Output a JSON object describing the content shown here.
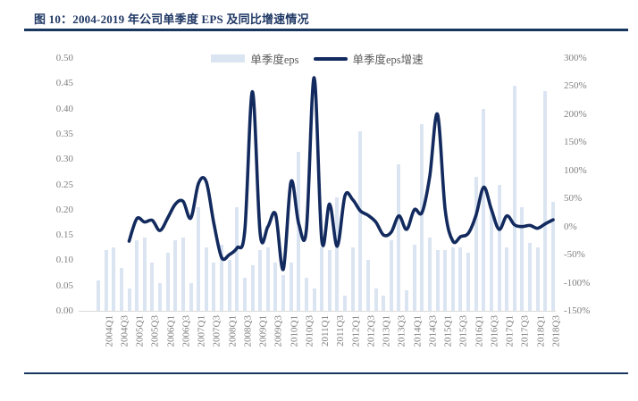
{
  "figure": {
    "title": "图 10：2004-2019 年公司单季度 EPS 及同比增速情况"
  },
  "colors": {
    "title_navy": "#1f3864",
    "frame_rule_navy": "#17375e",
    "bar_fill_light_blue": "#dbe5f2",
    "growth_line_navy": "#122a5e",
    "axis_text_gray": "#7f7f7f"
  },
  "chart_data": {
    "type": "bar",
    "subtype": "bar-plus-line-dual-axis",
    "grid": false,
    "legend_position": "top-center",
    "categories": [
      "2004Q1",
      "2004Q2",
      "2004Q3",
      "2004Q4",
      "2005Q1",
      "2005Q2",
      "2005Q3",
      "2005Q4",
      "2006Q1",
      "2006Q2",
      "2006Q3",
      "2006Q4",
      "2007Q1",
      "2007Q2",
      "2007Q3",
      "2007Q4",
      "2008Q1",
      "2008Q2",
      "2008Q3",
      "2008Q4",
      "2009Q1",
      "2009Q2",
      "2009Q3",
      "2009Q4",
      "2010Q1",
      "2010Q2",
      "2010Q3",
      "2010Q4",
      "2011Q1",
      "2011Q2",
      "2011Q3",
      "2011Q4",
      "2012Q1",
      "2012Q2",
      "2012Q3",
      "2012Q4",
      "2013Q1",
      "2013Q2",
      "2013Q3",
      "2013Q4",
      "2014Q1",
      "2014Q2",
      "2014Q3",
      "2014Q4",
      "2015Q1",
      "2015Q2",
      "2015Q3",
      "2015Q4",
      "2016Q1",
      "2016Q2",
      "2016Q3",
      "2016Q4",
      "2017Q1",
      "2017Q2",
      "2017Q3",
      "2017Q4",
      "2018Q1",
      "2018Q2",
      "2018Q3",
      "2018Q4"
    ],
    "x_tick_labels": [
      "2004Q1",
      "2004Q3",
      "2005Q1",
      "2005Q3",
      "2006Q1",
      "2006Q3",
      "2007Q1",
      "2007Q3",
      "2008Q1",
      "2008Q3",
      "2009Q1",
      "2009Q3",
      "2010Q1",
      "2010Q3",
      "2011Q1",
      "2011Q3",
      "2012Q1",
      "2012Q3",
      "2013Q1",
      "2013Q3",
      "2014Q1",
      "2014Q3",
      "2015Q1",
      "2015Q3",
      "2016Q1",
      "2016Q3",
      "2017Q1",
      "2017Q3",
      "2018Q1",
      "2018Q3"
    ],
    "series": [
      {
        "name": "单季度eps",
        "type": "bar",
        "axis": "left",
        "color": "#dbe5f2",
        "values": [
          0.06,
          0.12,
          0.125,
          0.085,
          0.045,
          0.14,
          0.145,
          0.095,
          0.055,
          0.115,
          0.14,
          0.145,
          0.055,
          0.205,
          0.125,
          0.095,
          0.13,
          0.1,
          0.205,
          0.065,
          0.09,
          0.12,
          0.125,
          0.095,
          0.07,
          0.095,
          0.315,
          0.065,
          0.045,
          0.125,
          0.12,
          0.225,
          0.03,
          0.125,
          0.355,
          0.1,
          0.045,
          0.03,
          0.14,
          0.29,
          0.04,
          0.13,
          0.37,
          0.145,
          0.12,
          0.12,
          0.125,
          0.125,
          0.115,
          0.265,
          0.4,
          0.205,
          0.25,
          0.125,
          0.445,
          0.205,
          0.135,
          0.125,
          0.435,
          0.215
        ]
      },
      {
        "name": "单季度eps增速",
        "type": "line",
        "axis": "right",
        "unit": "%",
        "color": "#122a5e",
        "values": [
          null,
          null,
          null,
          null,
          -26,
          14,
          8,
          11,
          -7,
          15,
          40,
          45,
          15,
          77,
          80,
          5,
          -55,
          -50,
          -38,
          -8,
          240,
          -13,
          0,
          22,
          -76,
          80,
          5,
          -5,
          265,
          -26,
          40,
          -35,
          55,
          48,
          28,
          20,
          8,
          -15,
          -10,
          19,
          -5,
          30,
          25,
          90,
          200,
          30,
          -26,
          -18,
          -12,
          20,
          70,
          30,
          -5,
          19,
          3,
          0,
          2,
          -3,
          5,
          12
        ]
      }
    ],
    "left_axis": {
      "min": 0.0,
      "max": 0.5,
      "step": 0.05,
      "tick_labels": [
        "0.50",
        "0.45",
        "0.40",
        "0.35",
        "0.30",
        "0.25",
        "0.20",
        "0.15",
        "0.10",
        "0.05",
        "0.00"
      ]
    },
    "right_axis": {
      "min": -150,
      "max": 300,
      "step": 50,
      "tick_labels": [
        "300%",
        "250%",
        "200%",
        "150%",
        "100%",
        "50%",
        "0%",
        "-50%",
        "-100%",
        "-150%"
      ]
    }
  }
}
